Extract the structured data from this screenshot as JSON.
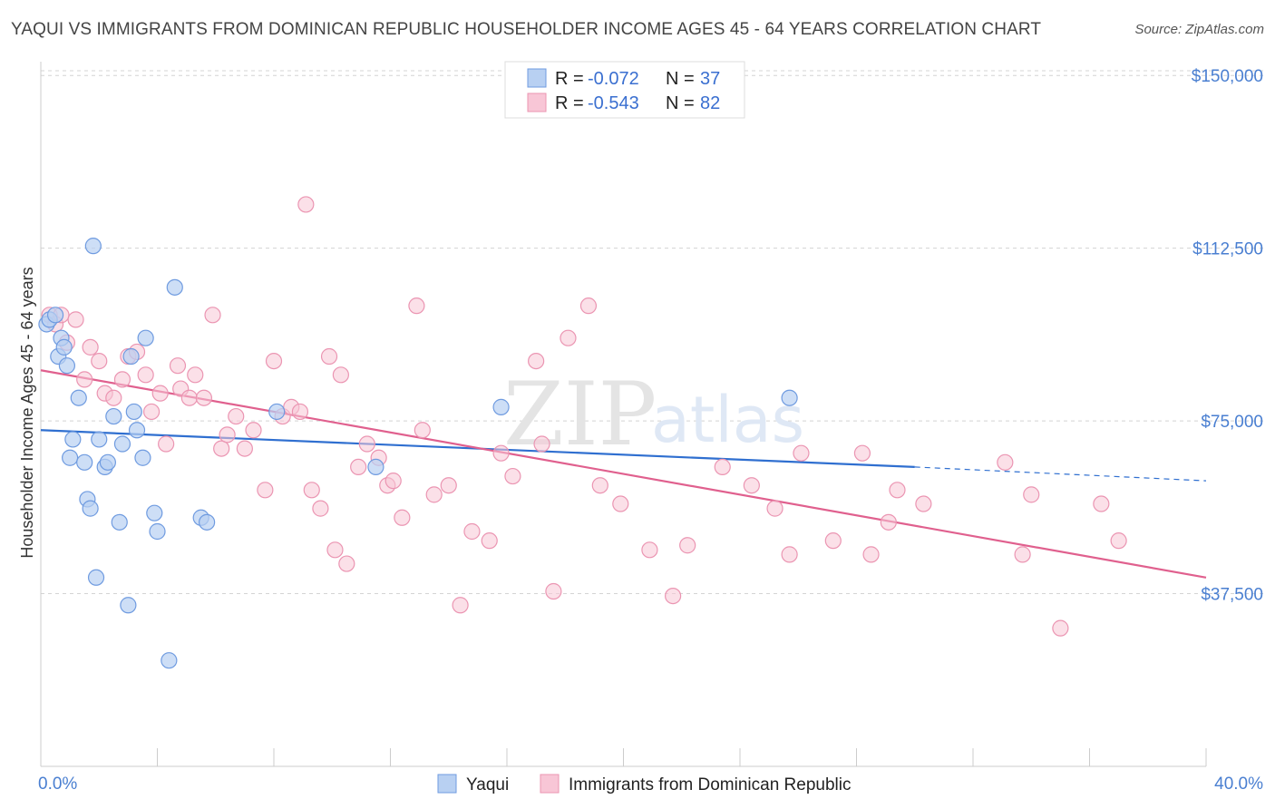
{
  "title": "YAQUI VS IMMIGRANTS FROM DOMINICAN REPUBLIC HOUSEHOLDER INCOME AGES 45 - 64 YEARS CORRELATION CHART",
  "source": "Source: ZipAtlas.com",
  "watermark": {
    "zip": "ZIP",
    "atlas": "atlas"
  },
  "legend": {
    "r_label": "R =",
    "n_label": "N =",
    "rows": [
      {
        "r": "-0.072",
        "n": "37",
        "series": "yaqui"
      },
      {
        "r": "-0.543",
        "n": "82",
        "series": "dominican"
      }
    ]
  },
  "bottom_legend": [
    "Yaqui",
    "Immigrants from Dominican Republic"
  ],
  "colors": {
    "yaqui_fill": "#b8d0f2",
    "yaqui_stroke": "#6f9be0",
    "yaqui_line": "#2f6fd0",
    "dom_fill": "#f8c6d6",
    "dom_stroke": "#eb95b2",
    "dom_line": "#e0608e",
    "tick_text": "#4a7fd1",
    "grid": "#d4d4d4"
  },
  "chart_data": {
    "type": "scatter",
    "title": "YAQUI VS IMMIGRANTS FROM DOMINICAN REPUBLIC HOUSEHOLDER INCOME AGES 45 - 64 YEARS CORRELATION CHART",
    "xlabel": "",
    "ylabel": "Householder Income Ages 45 - 64 years",
    "xlim": [
      0,
      40
    ],
    "ylim": [
      0,
      153000
    ],
    "x_tick_labels": [
      "0.0%",
      "40.0%"
    ],
    "y_ticks": [
      37500,
      75000,
      112500,
      150000
    ],
    "y_tick_labels": [
      "$37,500",
      "$75,000",
      "$112,500",
      "$150,000"
    ],
    "series": [
      {
        "name": "Yaqui",
        "r": -0.072,
        "n": 37,
        "points": [
          [
            0.2,
            96000
          ],
          [
            0.3,
            97000
          ],
          [
            0.5,
            98000
          ],
          [
            0.6,
            89000
          ],
          [
            0.7,
            93000
          ],
          [
            0.8,
            91000
          ],
          [
            0.9,
            87000
          ],
          [
            1.0,
            67000
          ],
          [
            1.1,
            71000
          ],
          [
            1.3,
            80000
          ],
          [
            1.5,
            66000
          ],
          [
            1.6,
            58000
          ],
          [
            1.7,
            56000
          ],
          [
            1.8,
            113000
          ],
          [
            1.9,
            41000
          ],
          [
            2.0,
            71000
          ],
          [
            2.2,
            65000
          ],
          [
            2.3,
            66000
          ],
          [
            2.5,
            76000
          ],
          [
            2.7,
            53000
          ],
          [
            2.8,
            70000
          ],
          [
            3.0,
            35000
          ],
          [
            3.1,
            89000
          ],
          [
            3.2,
            77000
          ],
          [
            3.3,
            73000
          ],
          [
            3.5,
            67000
          ],
          [
            3.6,
            93000
          ],
          [
            3.9,
            55000
          ],
          [
            4.0,
            51000
          ],
          [
            4.4,
            23000
          ],
          [
            4.6,
            104000
          ],
          [
            5.5,
            54000
          ],
          [
            5.7,
            53000
          ],
          [
            8.1,
            77000
          ],
          [
            11.5,
            65000
          ],
          [
            15.8,
            78000
          ],
          [
            25.7,
            80000
          ]
        ],
        "trend": {
          "x": [
            0,
            30
          ],
          "y": [
            73000,
            65000
          ],
          "dash_x": [
            30,
            40
          ],
          "dash_y": [
            65000,
            62000
          ]
        }
      },
      {
        "name": "Immigrants from Dominican Republic",
        "r": -0.543,
        "n": 82,
        "points": [
          [
            0.3,
            98000
          ],
          [
            0.5,
            96000
          ],
          [
            0.7,
            98000
          ],
          [
            0.9,
            92000
          ],
          [
            1.2,
            97000
          ],
          [
            1.5,
            84000
          ],
          [
            1.7,
            91000
          ],
          [
            2.0,
            88000
          ],
          [
            2.2,
            81000
          ],
          [
            2.5,
            80000
          ],
          [
            2.8,
            84000
          ],
          [
            3.0,
            89000
          ],
          [
            3.3,
            90000
          ],
          [
            3.6,
            85000
          ],
          [
            3.8,
            77000
          ],
          [
            4.1,
            81000
          ],
          [
            4.3,
            70000
          ],
          [
            4.7,
            87000
          ],
          [
            4.8,
            82000
          ],
          [
            5.1,
            80000
          ],
          [
            5.3,
            85000
          ],
          [
            5.6,
            80000
          ],
          [
            5.9,
            98000
          ],
          [
            6.2,
            69000
          ],
          [
            6.4,
            72000
          ],
          [
            6.7,
            76000
          ],
          [
            7.0,
            69000
          ],
          [
            7.3,
            73000
          ],
          [
            7.7,
            60000
          ],
          [
            8.0,
            88000
          ],
          [
            8.3,
            76000
          ],
          [
            8.6,
            78000
          ],
          [
            8.9,
            77000
          ],
          [
            9.1,
            122000
          ],
          [
            9.3,
            60000
          ],
          [
            9.6,
            56000
          ],
          [
            9.9,
            89000
          ],
          [
            10.1,
            47000
          ],
          [
            10.3,
            85000
          ],
          [
            10.5,
            44000
          ],
          [
            10.9,
            65000
          ],
          [
            11.2,
            70000
          ],
          [
            11.6,
            67000
          ],
          [
            11.9,
            61000
          ],
          [
            12.1,
            62000
          ],
          [
            12.4,
            54000
          ],
          [
            12.9,
            100000
          ],
          [
            13.1,
            73000
          ],
          [
            13.5,
            59000
          ],
          [
            14.0,
            61000
          ],
          [
            14.4,
            35000
          ],
          [
            14.8,
            51000
          ],
          [
            15.4,
            49000
          ],
          [
            15.8,
            68000
          ],
          [
            16.2,
            63000
          ],
          [
            17.2,
            70000
          ],
          [
            17.6,
            38000
          ],
          [
            18.1,
            93000
          ],
          [
            18.8,
            100000
          ],
          [
            19.2,
            61000
          ],
          [
            19.9,
            57000
          ],
          [
            20.9,
            47000
          ],
          [
            21.7,
            37000
          ],
          [
            22.2,
            48000
          ],
          [
            23.4,
            65000
          ],
          [
            24.4,
            61000
          ],
          [
            25.2,
            56000
          ],
          [
            25.7,
            46000
          ],
          [
            26.1,
            68000
          ],
          [
            27.2,
            49000
          ],
          [
            28.2,
            68000
          ],
          [
            28.5,
            46000
          ],
          [
            29.1,
            53000
          ],
          [
            29.4,
            60000
          ],
          [
            30.3,
            57000
          ],
          [
            33.1,
            66000
          ],
          [
            33.7,
            46000
          ],
          [
            34.0,
            59000
          ],
          [
            35.0,
            30000
          ],
          [
            36.4,
            57000
          ],
          [
            37.0,
            49000
          ],
          [
            17.0,
            88000
          ]
        ],
        "trend": {
          "x": [
            0,
            40
          ],
          "y": [
            86000,
            41000
          ]
        }
      }
    ]
  }
}
